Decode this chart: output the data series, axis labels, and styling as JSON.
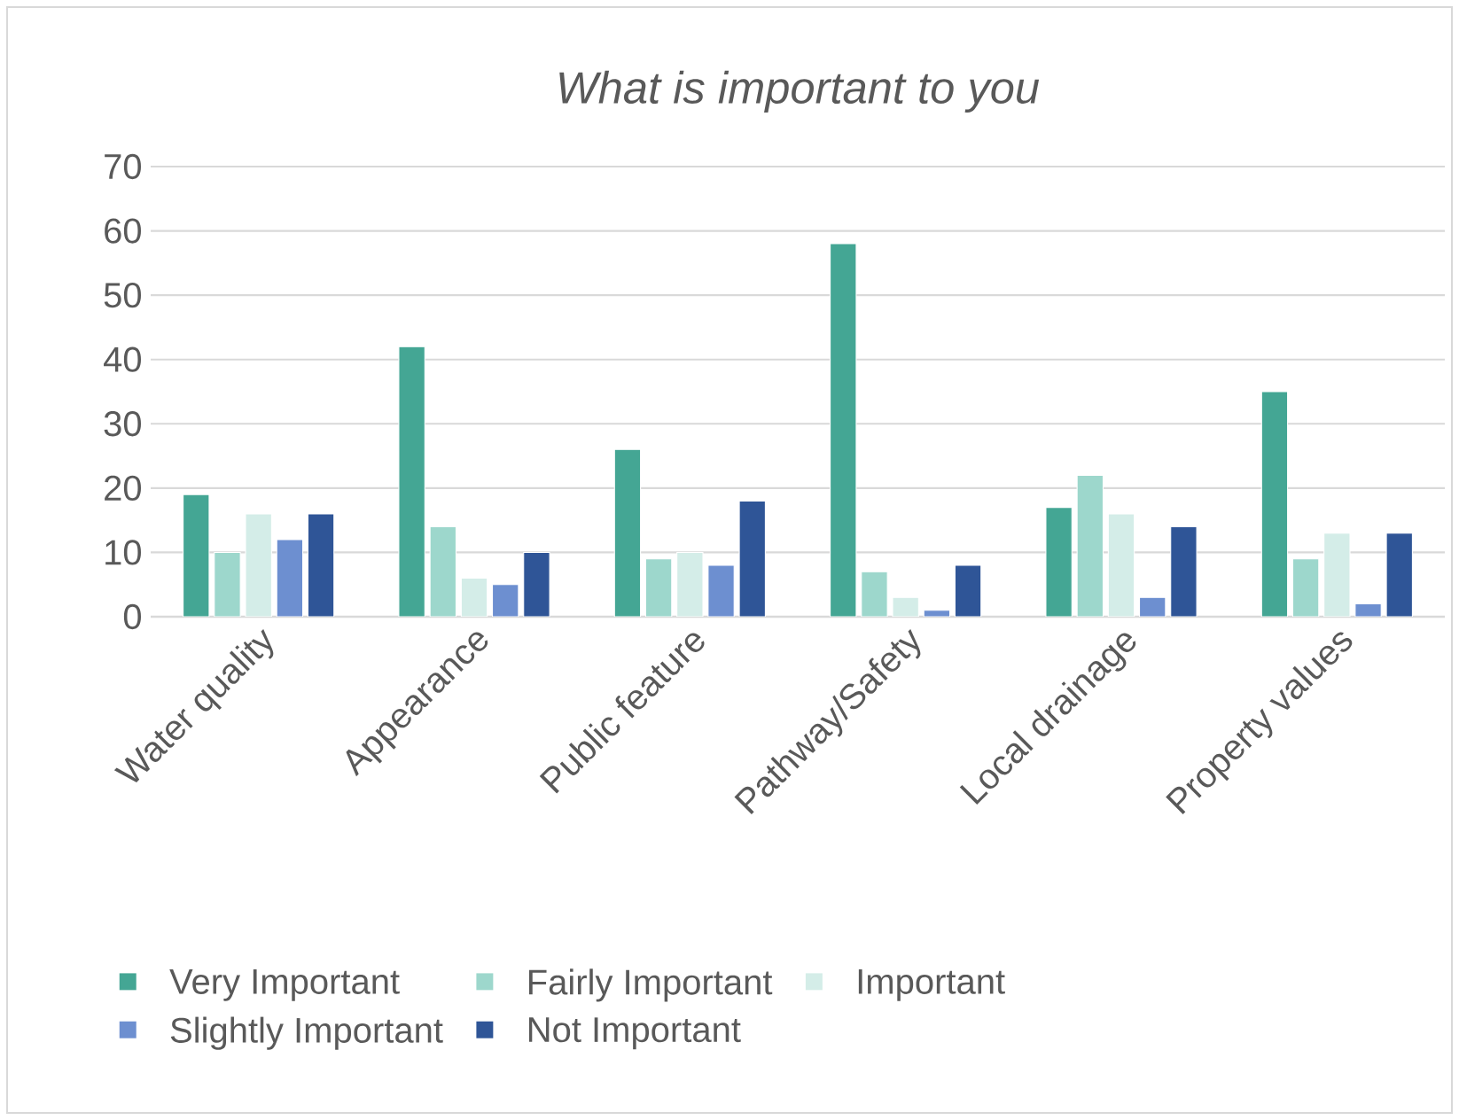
{
  "chart_data": {
    "type": "bar",
    "title": "What is important to you",
    "categories": [
      "Water quality",
      "Appearance",
      "Public feature",
      "Pathway/Safety",
      "Local drainage",
      "Property values"
    ],
    "series": [
      {
        "name": "Very Important",
        "color": "#44a694",
        "values": [
          19,
          42,
          26,
          58,
          17,
          35
        ]
      },
      {
        "name": "Fairly Important",
        "color": "#9dd7cc",
        "values": [
          10,
          14,
          9,
          7,
          22,
          9
        ]
      },
      {
        "name": "Important",
        "color": "#d4ede8",
        "values": [
          16,
          6,
          10,
          3,
          16,
          13
        ]
      },
      {
        "name": "Slightly Important",
        "color": "#6d8fd0",
        "values": [
          12,
          5,
          8,
          1,
          3,
          2
        ]
      },
      {
        "name": "Not Important",
        "color": "#2f5597",
        "values": [
          16,
          10,
          18,
          8,
          14,
          13
        ]
      }
    ],
    "ylim": [
      0,
      70
    ],
    "yticks": [
      0,
      10,
      20,
      30,
      40,
      50,
      60,
      70
    ],
    "grid": "y",
    "legend": "bottom"
  }
}
